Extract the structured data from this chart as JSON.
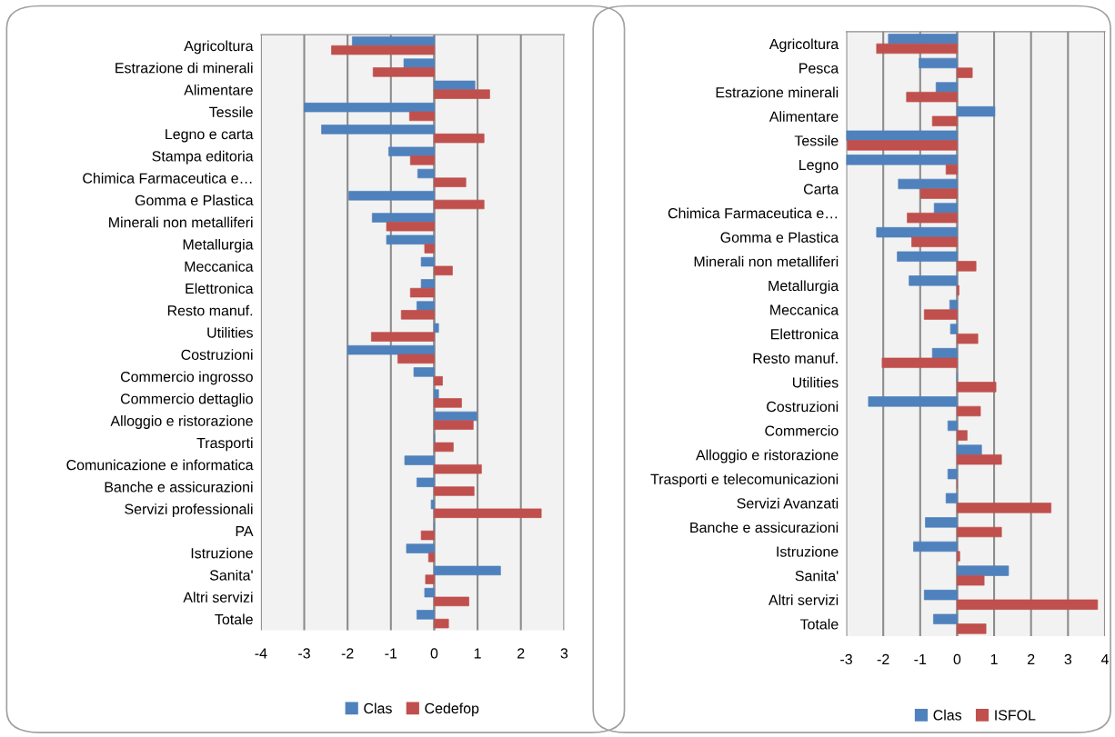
{
  "chart_data": [
    {
      "type": "bar",
      "orientation": "horizontal",
      "categories": [
        "Agricoltura",
        "Estrazione di minerali",
        "Alimentare",
        "Tessile",
        "Legno e carta",
        "Stampa editoria",
        "Chimica Farmaceutica e…",
        "Gomma e Plastica",
        "Minerali non metalliferi",
        "Metallurgia",
        "Meccanica",
        "Elettronica",
        "Resto manuf.",
        "Utilities",
        "Costruzioni",
        "Commercio ingrosso",
        "Commercio dettaglio",
        "Alloggio e ristorazione",
        "Trasporti",
        "Comunicazione e informatica",
        "Banche e assicurazioni",
        "Servizi professionali",
        "PA",
        "Istruzione",
        "Sanita'",
        "Altri servizi",
        "Totale"
      ],
      "series": [
        {
          "name": "Clas",
          "color": "#4f81bd",
          "values": [
            -1.89,
            -0.7,
            0.94,
            -3.0,
            -2.6,
            -1.05,
            -0.38,
            -1.97,
            -1.43,
            -1.1,
            -0.3,
            -0.3,
            -0.4,
            0.1,
            -2.0,
            -0.47,
            0.1,
            0.98,
            0.01,
            -0.68,
            -0.4,
            -0.07,
            0,
            -0.64,
            1.53,
            -0.22,
            -0.4
          ]
        },
        {
          "name": "Cedefop",
          "color": "#c0504d",
          "values": [
            -2.37,
            -1.41,
            1.28,
            -0.57,
            1.15,
            -0.55,
            0.73,
            1.15,
            -1.1,
            -0.22,
            0.42,
            -0.55,
            -0.76,
            -1.45,
            -0.84,
            0.19,
            0.63,
            0.9,
            0.44,
            1.09,
            0.92,
            2.47,
            -0.3,
            -0.13,
            -0.2,
            0.8,
            0.33
          ]
        }
      ],
      "xlim": [
        -4,
        3
      ],
      "xticks": [
        -4,
        -3,
        -2,
        -1,
        0,
        1,
        2,
        3
      ],
      "grid": "x",
      "legend": "bottom"
    },
    {
      "type": "bar",
      "orientation": "horizontal",
      "categories": [
        "Agricoltura",
        "Pesca",
        "Estrazione minerali",
        "Alimentare",
        "Tessile",
        "Legno",
        "Carta",
        "Chimica Farmaceutica e…",
        "Gomma e Plastica",
        "Minerali non metalliferi",
        "Metallurgia",
        "Meccanica",
        "Elettronica",
        "Resto manuf.",
        "Utilities",
        "Costruzioni",
        "Commercio",
        "Alloggio e ristorazione",
        "Trasporti e telecomunicazioni",
        "Servizi Avanzati",
        "Banche e assicurazioni",
        "Istruzione",
        "Sanita'",
        "Altri servizi",
        "Totale"
      ],
      "series": [
        {
          "name": "Clas",
          "color": "#4f81bd",
          "values": [
            -1.86,
            -1.03,
            -0.57,
            1.02,
            -3.0,
            -3.0,
            -1.59,
            -0.62,
            -2.18,
            -1.62,
            -1.3,
            -0.2,
            -0.18,
            -0.67,
            0,
            -2.4,
            -0.25,
            0.66,
            -0.25,
            -0.3,
            -0.86,
            -1.18,
            1.39,
            -0.89,
            -0.64
          ]
        },
        {
          "name": "ISFOL",
          "color": "#c0504d",
          "values": [
            -2.18,
            0.41,
            -1.37,
            -0.67,
            -2.97,
            -0.3,
            -0.99,
            -1.35,
            -1.23,
            0.51,
            0.05,
            -0.89,
            0.56,
            -2.03,
            1.05,
            0.63,
            0.27,
            1.2,
            0,
            2.54,
            1.2,
            0.07,
            0.73,
            3.8,
            0.78
          ]
        }
      ],
      "xlim": [
        -3,
        4
      ],
      "xticks": [
        -3,
        -2,
        -1,
        0,
        1,
        2,
        3,
        4
      ],
      "grid": "x",
      "legend": "bottom"
    }
  ]
}
